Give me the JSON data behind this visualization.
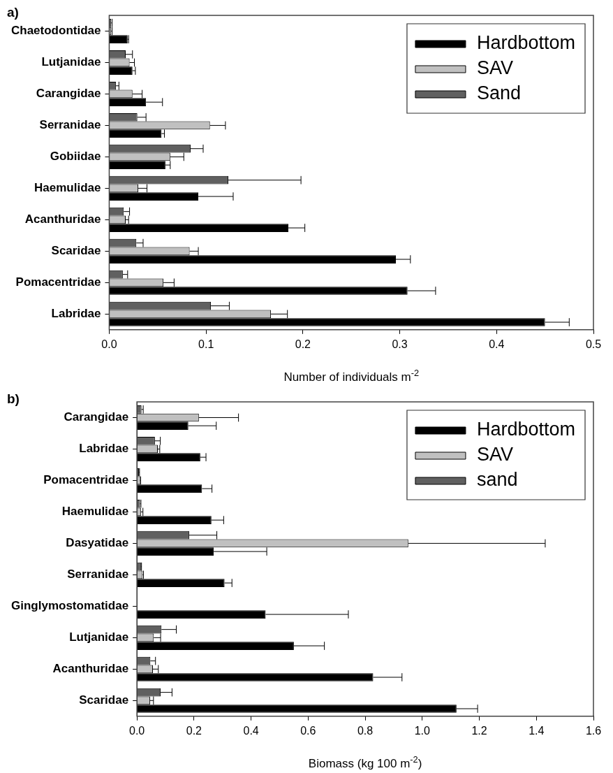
{
  "chart_data": [
    {
      "type": "bar",
      "title": "a)",
      "orientation": "horizontal",
      "xlabel": "Number of individuals m$^{-2}$",
      "categories": [
        "Chaetodontidae",
        "Lutjanidae",
        "Carangidae",
        "Serranidae",
        "Gobiidae",
        "Haemulidae",
        "Acanthuridae",
        "Scaridae",
        "Pomacentridae",
        "Labridae"
      ],
      "xlim": [
        0,
        0.5
      ],
      "xticks": [
        {
          "value": 0,
          "label": "0.0"
        },
        0.1,
        0.2,
        0.3,
        0.4,
        0.5
      ],
      "legend": "top right",
      "series": [
        {
          "name": "Hardbottom",
          "color": "#000000",
          "values": [
            0.019,
            0.024,
            0.038,
            0.054,
            0.058,
            0.092,
            0.185,
            0.296,
            0.308,
            0.45
          ],
          "errors": [
            [
              0.019,
              0.02
            ],
            [
              0.024,
              0.027
            ],
            [
              0.038,
              0.055
            ],
            [
              0.054,
              0.057
            ],
            [
              0.058,
              0.063
            ],
            [
              0.092,
              0.128
            ],
            [
              0.185,
              0.202
            ],
            [
              0.296,
              0.311
            ],
            [
              0.308,
              0.337
            ],
            [
              0.45,
              0.475
            ]
          ]
        },
        {
          "name": "SAV",
          "color": "#c0c0c0",
          "values": [
            0.002,
            0.021,
            0.024,
            0.104,
            0.063,
            0.03,
            0.017,
            0.083,
            0.056,
            0.167
          ],
          "errors": [
            [
              0.002,
              0.003
            ],
            [
              0.021,
              0.026
            ],
            [
              0.024,
              0.034
            ],
            [
              0.104,
              0.12
            ],
            [
              0.063,
              0.077
            ],
            [
              0.03,
              0.039
            ],
            [
              0.017,
              0.02
            ],
            [
              0.083,
              0.092
            ],
            [
              0.056,
              0.067
            ],
            [
              0.167,
              0.184
            ]
          ]
        },
        {
          "name": "Sand",
          "color": "#606060",
          "values": [
            0.002,
            0.017,
            0.007,
            0.029,
            0.084,
            0.123,
            0.015,
            0.028,
            0.014,
            0.105
          ],
          "errors": [
            [
              0.002,
              0.003
            ],
            [
              0.017,
              0.024
            ],
            [
              0.007,
              0.01
            ],
            [
              0.029,
              0.038
            ],
            [
              0.084,
              0.097
            ],
            [
              0.123,
              0.198
            ],
            [
              0.015,
              0.021
            ],
            [
              0.028,
              0.035
            ],
            [
              0.014,
              0.019
            ],
            [
              0.105,
              0.124
            ]
          ]
        }
      ]
    },
    {
      "type": "bar",
      "title": "b)",
      "orientation": "horizontal",
      "xlabel": "Biomass (kg 100 m$^{-2}$)",
      "categories": [
        "Carangidae",
        "Labridae",
        "Pomacentridae",
        "Haemulidae",
        "Dasyatidae",
        "Serranidae",
        "Ginglymostomatidae",
        "Lutjanidae",
        "Acanthuridae",
        "Scaridae"
      ],
      "xlim": [
        0,
        1.6
      ],
      "xticks": [
        {
          "value": 0,
          "label": "0.0"
        },
        {
          "value": 0.2,
          "label": "0.2"
        },
        {
          "value": 0.4,
          "label": "0.4"
        },
        {
          "value": 0.6,
          "label": "0.6"
        },
        {
          "value": 0.8,
          "label": "0.8"
        },
        {
          "value": 1,
          "label": "1.0"
        },
        {
          "value": 1.2,
          "label": "1.2"
        },
        {
          "value": 1.4,
          "label": "1.4"
        },
        {
          "value": 1.6,
          "label": "1.6"
        }
      ],
      "legend": "top right",
      "series": [
        {
          "name": "Hardbottom",
          "color": "#000000",
          "values": [
            0.18,
            0.222,
            0.228,
            0.261,
            0.269,
            0.307,
            0.451,
            0.55,
            0.828,
            1.12
          ],
          "errors": [
            [
              0.18,
              0.278
            ],
            [
              0.222,
              0.242
            ],
            [
              0.228,
              0.263
            ],
            [
              0.261,
              0.304
            ],
            [
              0.269,
              0.455
            ],
            [
              0.307,
              0.333
            ],
            [
              0.451,
              0.741
            ],
            [
              0.55,
              0.657
            ],
            [
              0.828,
              0.929
            ],
            [
              1.12,
              1.194
            ]
          ]
        },
        {
          "name": "SAV",
          "color": "#c0c0c0",
          "values": [
            0.217,
            0.073,
            0.011,
            0.014,
            0.951,
            0.02,
            0,
            0.059,
            0.056,
            0.046
          ],
          "errors": [
            [
              0.217,
              0.356
            ],
            [
              0.073,
              0.08
            ],
            [
              0.011,
              0.013
            ],
            [
              0.014,
              0.021
            ],
            [
              0.951,
              1.431
            ],
            [
              0.02,
              0.023
            ],
            null,
            [
              0.059,
              0.083
            ],
            [
              0.056,
              0.075
            ],
            [
              0.046,
              0.058
            ]
          ]
        },
        {
          "name": "sand",
          "color": "#606060",
          "values": [
            0.016,
            0.063,
            0.007,
            0.011,
            0.183,
            0.014,
            0,
            0.086,
            0.047,
            0.083
          ],
          "errors": [
            [
              0.016,
              0.022
            ],
            [
              0.063,
              0.082
            ],
            [
              0.007,
              0.009
            ],
            [
              0.011,
              0.014
            ],
            [
              0.183,
              0.28
            ],
            [
              0.014,
              0.016
            ],
            null,
            [
              0.086,
              0.138
            ],
            [
              0.047,
              0.065
            ],
            [
              0.083,
              0.123
            ]
          ]
        }
      ]
    }
  ]
}
